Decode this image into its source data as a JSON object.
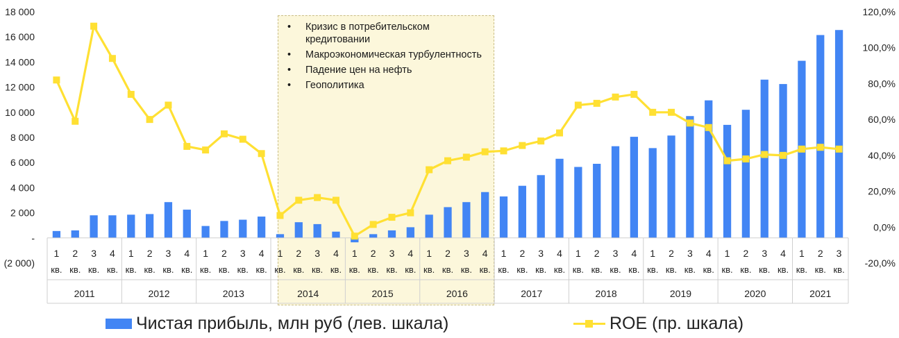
{
  "chart_data": {
    "type": "bar+line",
    "left_axis": {
      "ticks": [
        "(2 000)",
        "-",
        "2 000",
        "4 000",
        "6 000",
        "8 000",
        "10 000",
        "12 000",
        "14 000",
        "16 000",
        "18 000"
      ],
      "ylim": [
        -2000,
        18000
      ]
    },
    "right_axis": {
      "ticks": [
        "-20,0%",
        "0,0%",
        "20,0%",
        "40,0%",
        "60,0%",
        "80,0%",
        "100,0%",
        "120,0%"
      ],
      "ylim": [
        -20,
        120
      ]
    },
    "quarter_labels": [
      "1",
      "2",
      "3",
      "4",
      "1",
      "2",
      "3",
      "4",
      "1",
      "2",
      "3",
      "4",
      "1",
      "2",
      "3",
      "4",
      "1",
      "2",
      "3",
      "4",
      "1",
      "2",
      "3",
      "4",
      "1",
      "2",
      "3",
      "4",
      "1",
      "2",
      "3",
      "4",
      "1",
      "2",
      "3",
      "4",
      "1",
      "2",
      "3",
      "4",
      "1",
      "2",
      "3"
    ],
    "quarter_suffix": "кв.",
    "years": [
      {
        "label": "2011",
        "count": 4
      },
      {
        "label": "2012",
        "count": 4
      },
      {
        "label": "2013",
        "count": 4
      },
      {
        "label": "2014",
        "count": 4
      },
      {
        "label": "2015",
        "count": 4
      },
      {
        "label": "2016",
        "count": 4
      },
      {
        "label": "2017",
        "count": 4
      },
      {
        "label": "2018",
        "count": 4
      },
      {
        "label": "2019",
        "count": 4
      },
      {
        "label": "2020",
        "count": 4
      },
      {
        "label": "2021",
        "count": 3
      }
    ],
    "series": [
      {
        "name": "Чистая прибыль, млн руб (лев. шкала)",
        "type": "bar",
        "axis": "left",
        "color": "#4285f4",
        "values": [
          550,
          600,
          1800,
          1800,
          1850,
          1900,
          2850,
          2250,
          950,
          1350,
          1450,
          1700,
          300,
          1250,
          1100,
          500,
          -350,
          300,
          600,
          850,
          1850,
          2450,
          2850,
          3650,
          3300,
          4150,
          5000,
          6300,
          5650,
          5900,
          7300,
          8050,
          7150,
          8150,
          9700,
          10950,
          9000,
          10200,
          12600,
          12250,
          14100,
          16150,
          16550
        ]
      },
      {
        "name": "ROE (пр. шкала)",
        "type": "line",
        "axis": "right",
        "color": "#ffe033",
        "values": [
          82,
          59,
          112,
          94,
          74,
          60,
          68,
          45,
          43,
          52,
          49,
          41,
          6.5,
          15,
          16.5,
          15,
          -5,
          1.5,
          5.5,
          8,
          32,
          37,
          39,
          42,
          42.5,
          45.5,
          48,
          52.5,
          68,
          69,
          72.5,
          74,
          64,
          64,
          58,
          55.5,
          37,
          38,
          40.5,
          40,
          43.5,
          44.5,
          43.5
        ]
      }
    ],
    "highlight": {
      "from_year": "2014",
      "to_year": "2016",
      "color": "#faf0be",
      "notes": [
        "Кризис в потребительском кредитовании",
        "Макроэкономическая турбулентность",
        "Падение цен на нефть",
        "Геополитика"
      ]
    },
    "legend": {
      "placement": "bottom",
      "items": [
        "Чистая прибыль, млн руб (лев. шкала)",
        "ROE (пр. шкала)"
      ]
    }
  }
}
